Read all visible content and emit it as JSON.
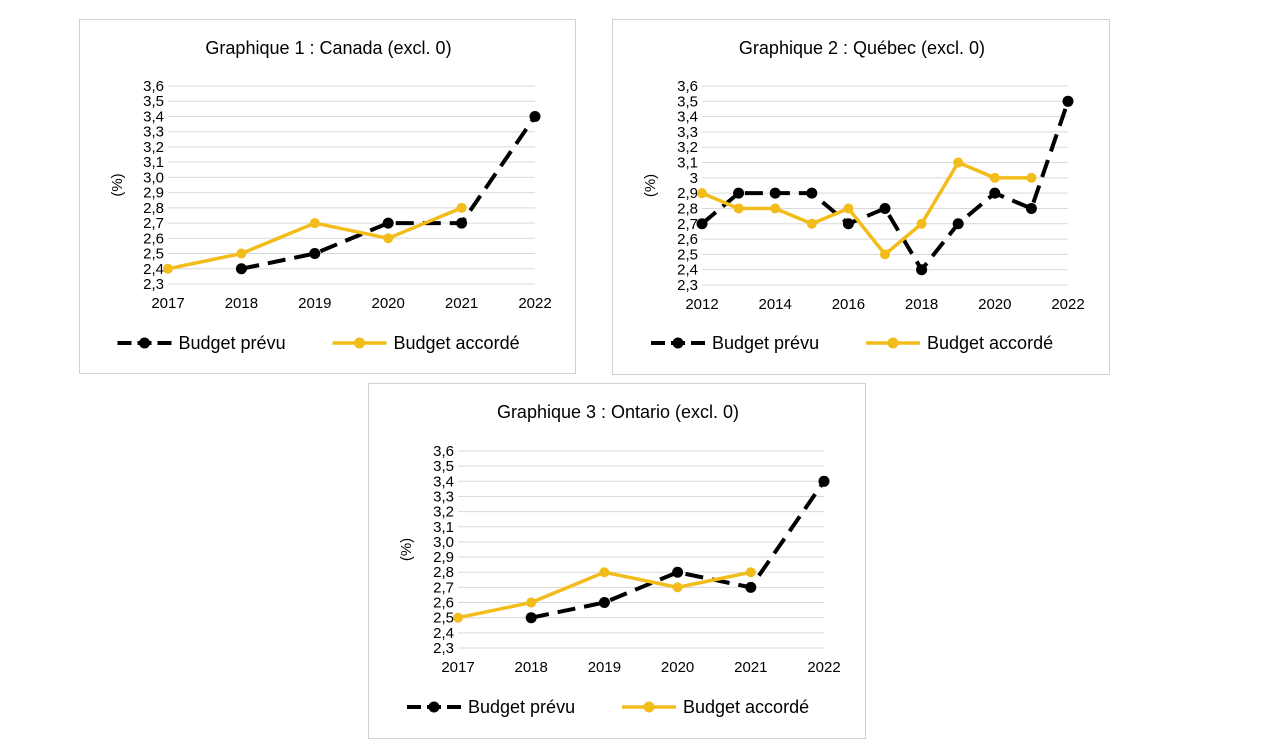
{
  "colors": {
    "planned": "#000000",
    "granted": "#f2bc1b",
    "grid": "#d9d9d9"
  },
  "chart_data": [
    {
      "type": "line",
      "title": "Graphique 1 : Canada (excl. 0)",
      "ylabel": "(%)",
      "ylim": [
        2.3,
        3.6
      ],
      "yticks": [
        "2,3",
        "2,4",
        "2,5",
        "2,6",
        "2,7",
        "2,8",
        "2,9",
        "3,0",
        "3,1",
        "3,2",
        "3,3",
        "3,4",
        "3,5",
        "3,6"
      ],
      "x": [
        2017,
        2018,
        2019,
        2020,
        2021,
        2022
      ],
      "xticks": [
        "2017",
        "2018",
        "2019",
        "2020",
        "2021",
        "2022"
      ],
      "grid": true,
      "legend_position": "bottom",
      "series": [
        {
          "name": "Budget prévu",
          "style": "dashed",
          "values": [
            null,
            2.4,
            2.5,
            2.7,
            2.7,
            3.4
          ]
        },
        {
          "name": "Budget accordé",
          "style": "solid",
          "values": [
            2.4,
            2.5,
            2.7,
            2.6,
            2.8,
            null
          ]
        }
      ]
    },
    {
      "type": "line",
      "title": "Graphique 2 : Québec (excl. 0)",
      "ylabel": "(%)",
      "ylim": [
        2.3,
        3.6
      ],
      "yticks": [
        "2,3",
        "2,4",
        "2,5",
        "2,6",
        "2,7",
        "2,8",
        "2,9",
        "3",
        "3,1",
        "3,2",
        "3,3",
        "3,4",
        "3,5",
        "3,6"
      ],
      "x": [
        2012,
        2013,
        2014,
        2015,
        2016,
        2017,
        2018,
        2019,
        2020,
        2021,
        2022
      ],
      "xticks": [
        "2012",
        "",
        "2014",
        "",
        "2016",
        "",
        "2018",
        "",
        "2020",
        "",
        "2022"
      ],
      "grid": true,
      "legend_position": "bottom",
      "series": [
        {
          "name": "Budget prévu",
          "style": "dashed",
          "values": [
            2.7,
            2.9,
            2.9,
            2.9,
            2.7,
            2.8,
            2.4,
            2.7,
            2.9,
            2.8,
            3.5
          ]
        },
        {
          "name": "Budget accordé",
          "style": "solid",
          "values": [
            2.9,
            2.8,
            2.8,
            2.7,
            2.8,
            2.5,
            2.7,
            3.1,
            3.0,
            3.0,
            null
          ]
        }
      ]
    },
    {
      "type": "line",
      "title": "Graphique 3 : Ontario (excl. 0)",
      "ylabel": "(%)",
      "ylim": [
        2.3,
        3.6
      ],
      "yticks": [
        "2,3",
        "2,4",
        "2,5",
        "2,6",
        "2,7",
        "2,8",
        "2,9",
        "3,0",
        "3,1",
        "3,2",
        "3,3",
        "3,4",
        "3,5",
        "3,6"
      ],
      "x": [
        2017,
        2018,
        2019,
        2020,
        2021,
        2022
      ],
      "xticks": [
        "2017",
        "2018",
        "2019",
        "2020",
        "2021",
        "2022"
      ],
      "grid": true,
      "legend_position": "bottom",
      "series": [
        {
          "name": "Budget prévu",
          "style": "dashed",
          "values": [
            null,
            2.5,
            2.6,
            2.8,
            2.7,
            3.4
          ]
        },
        {
          "name": "Budget accordé",
          "style": "solid",
          "values": [
            2.5,
            2.6,
            2.8,
            2.7,
            2.8,
            null
          ]
        }
      ]
    }
  ]
}
